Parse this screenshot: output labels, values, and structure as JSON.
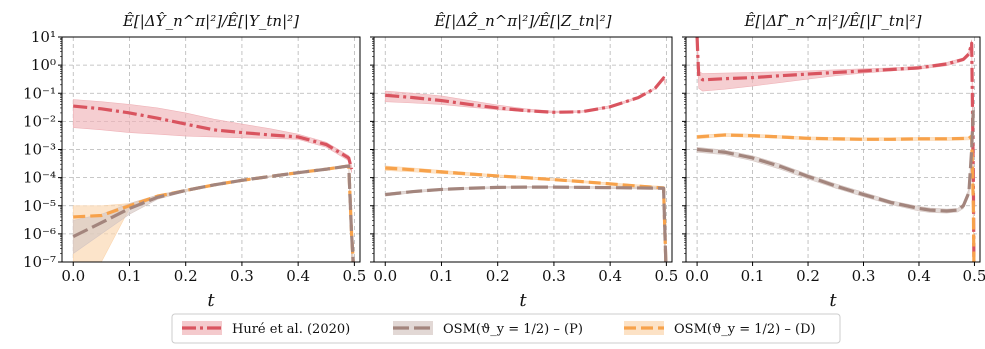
{
  "figure": {
    "legend": {
      "placement": "bottom-center",
      "entries": [
        {
          "key": "hure",
          "label": "Huré et al. (2020)"
        },
        {
          "key": "osm_p",
          "label": "OSM(ϑ_y = 1/2) – (P)"
        },
        {
          "key": "osm_d",
          "label": "OSM(ϑ_y = 1/2) – (D)"
        }
      ]
    },
    "colors": {
      "hure": "#d9545f",
      "hure_band": "#efb3b8",
      "osm_p": "#a3857d",
      "osm_p_band": "#d6c7c3",
      "osm_d": "#f7a24b",
      "osm_d_band": "#fbd6ae",
      "grid": "#b5b5b5"
    }
  },
  "chart_data": [
    {
      "type": "line",
      "title": "Ê[|ΔŶ_n^π|²]/Ê[|Y_tn|²]",
      "xlabel": "t",
      "ylabel": "",
      "yscale": "log",
      "xlim": [
        -0.02,
        0.51
      ],
      "ylim": [
        1e-07,
        10
      ],
      "xticks": [
        "0.0",
        "0.1",
        "0.2",
        "0.3",
        "0.4",
        "0.5"
      ],
      "yticks": [
        "10⁻⁷",
        "10⁻⁶",
        "10⁻⁵",
        "10⁻⁴",
        "10⁻³",
        "10⁻²",
        "10⁻¹",
        "10⁰",
        "10¹"
      ],
      "grid": true,
      "series": [
        {
          "key": "osm_d",
          "x": [
            0.0,
            0.05,
            0.1,
            0.15,
            0.2,
            0.25,
            0.3,
            0.35,
            0.4,
            0.45,
            0.49,
            0.495,
            0.498
          ],
          "y": [
            4e-06,
            4.5e-06,
            1e-05,
            2.2e-05,
            3.5e-05,
            5.5e-05,
            8e-05,
            0.00011,
            0.00015,
            0.0002,
            0.00026,
            1e-06,
            1e-07
          ],
          "lo": [
            1e-07,
            1e-07,
            8e-06,
            2e-05,
            3.2e-05,
            5e-05,
            7.5e-05,
            0.000105,
            0.00014,
            0.00019,
            0.00024,
            1e-07,
            1e-07
          ],
          "hi": [
            1e-05,
            1e-05,
            1.2e-05,
            2.4e-05,
            3.8e-05,
            6e-05,
            8.5e-05,
            0.000115,
            0.00016,
            0.00021,
            0.00028,
            2e-06,
            1e-07
          ]
        },
        {
          "key": "osm_p",
          "x": [
            0.0,
            0.05,
            0.1,
            0.15,
            0.2,
            0.25,
            0.3,
            0.35,
            0.4,
            0.45,
            0.49,
            0.495,
            0.498
          ],
          "y": [
            8e-07,
            2.5e-06,
            8e-06,
            2e-05,
            3.5e-05,
            5.5e-05,
            8e-05,
            0.00011,
            0.00015,
            0.0002,
            0.00026,
            1e-06,
            1e-07
          ],
          "lo": [
            2e-07,
            1e-06,
            5e-06,
            1.7e-05,
            3.2e-05,
            5e-05,
            7.5e-05,
            0.000105,
            0.00014,
            0.00019,
            0.00024,
            1e-07,
            1e-07
          ],
          "hi": [
            3e-06,
            5e-06,
            1.2e-05,
            2.4e-05,
            3.8e-05,
            6e-05,
            8.5e-05,
            0.000115,
            0.00016,
            0.00021,
            0.00028,
            2e-06,
            1e-07
          ]
        },
        {
          "key": "hure",
          "x": [
            0.0,
            0.05,
            0.1,
            0.15,
            0.2,
            0.25,
            0.3,
            0.35,
            0.4,
            0.45,
            0.49,
            0.495
          ],
          "y": [
            0.035,
            0.028,
            0.02,
            0.013,
            0.008,
            0.005,
            0.004,
            0.0033,
            0.0028,
            0.0015,
            0.0005,
            0.0002
          ],
          "lo": [
            0.006,
            0.005,
            0.004,
            0.0035,
            0.003,
            0.0028,
            0.0026,
            0.0025,
            0.0023,
            0.0012,
            0.0004,
            0.00015
          ],
          "hi": [
            0.06,
            0.05,
            0.04,
            0.03,
            0.02,
            0.012,
            0.008,
            0.0055,
            0.0035,
            0.0018,
            0.0006,
            0.00025
          ]
        }
      ]
    },
    {
      "type": "line",
      "title": "Ê[|ΔẐ_n^π|²]/Ê[|Z_tn|²]",
      "xlabel": "t",
      "ylabel": "",
      "yscale": "log",
      "xlim": [
        -0.02,
        0.51
      ],
      "ylim": [
        1e-07,
        10
      ],
      "xticks": [
        "0.0",
        "0.1",
        "0.2",
        "0.3",
        "0.4",
        "0.5"
      ],
      "grid": true,
      "series": [
        {
          "key": "hure",
          "x": [
            0.0,
            0.05,
            0.1,
            0.15,
            0.2,
            0.25,
            0.3,
            0.35,
            0.4,
            0.45,
            0.48,
            0.495,
            0.498
          ],
          "y": [
            0.085,
            0.07,
            0.055,
            0.04,
            0.03,
            0.024,
            0.021,
            0.022,
            0.033,
            0.07,
            0.15,
            0.35,
            0.25
          ],
          "lo": [
            0.05,
            0.045,
            0.04,
            0.032,
            0.026,
            0.022,
            0.02,
            0.021,
            0.03,
            0.065,
            0.14,
            0.3,
            0.2
          ],
          "hi": [
            0.12,
            0.1,
            0.08,
            0.055,
            0.038,
            0.028,
            0.023,
            0.024,
            0.036,
            0.075,
            0.16,
            0.4,
            0.3
          ]
        },
        {
          "key": "osm_d",
          "x": [
            0.0,
            0.05,
            0.1,
            0.15,
            0.2,
            0.25,
            0.3,
            0.35,
            0.4,
            0.45,
            0.495,
            0.497,
            0.499
          ],
          "y": [
            0.00022,
            0.00019,
            0.00016,
            0.000135,
            0.000115,
            0.0001,
            8.5e-05,
            7.2e-05,
            6e-05,
            5e-05,
            4.3e-05,
            2e-06,
            1e-07
          ],
          "lo": [
            0.00018,
            0.00016,
            0.00014,
            0.00012,
            0.000105,
            9e-05,
            7.8e-05,
            6.6e-05,
            5.5e-05,
            4.5e-05,
            3.8e-05,
            1e-07,
            1e-07
          ],
          "hi": [
            0.00026,
            0.00022,
            0.00018,
            0.00015,
            0.000125,
            0.00011,
            9.2e-05,
            7.8e-05,
            6.5e-05,
            5.5e-05,
            4.8e-05,
            3e-06,
            1e-07
          ]
        },
        {
          "key": "osm_p",
          "x": [
            0.0,
            0.05,
            0.1,
            0.15,
            0.2,
            0.25,
            0.3,
            0.35,
            0.4,
            0.45,
            0.495,
            0.497,
            0.499
          ],
          "y": [
            2.5e-05,
            3.2e-05,
            3.8e-05,
            4.2e-05,
            4.5e-05,
            4.6e-05,
            4.6e-05,
            4.5e-05,
            4.4e-05,
            4.3e-05,
            4.2e-05,
            2e-06,
            1e-07
          ],
          "lo": [
            2.2e-05,
            2.9e-05,
            3.5e-05,
            3.9e-05,
            4.2e-05,
            4.3e-05,
            4.3e-05,
            4.2e-05,
            4.1e-05,
            4e-05,
            3.8e-05,
            1e-07,
            1e-07
          ],
          "hi": [
            2.8e-05,
            3.5e-05,
            4.1e-05,
            4.5e-05,
            4.8e-05,
            4.9e-05,
            4.9e-05,
            4.8e-05,
            4.7e-05,
            4.6e-05,
            4.6e-05,
            3e-06,
            1e-07
          ]
        }
      ]
    },
    {
      "type": "line",
      "title": "Ê[|ΔΓ̂_n^π|²]/Ê[|Γ_tn|²]",
      "xlabel": "t",
      "ylabel": "",
      "yscale": "log",
      "xlim": [
        -0.02,
        0.51
      ],
      "ylim": [
        1e-07,
        10
      ],
      "xticks": [
        "0.0",
        "0.1",
        "0.2",
        "0.3",
        "0.4",
        "0.5"
      ],
      "grid": true,
      "series": [
        {
          "key": "hure",
          "x": [
            0.0,
            0.001,
            0.003,
            0.01,
            0.05,
            0.1,
            0.15,
            0.2,
            0.25,
            0.3,
            0.35,
            0.4,
            0.45,
            0.48,
            0.49,
            0.495,
            0.498,
            0.499
          ],
          "y": [
            10,
            3,
            0.4,
            0.3,
            0.33,
            0.36,
            0.42,
            0.48,
            0.55,
            0.62,
            0.7,
            0.8,
            1.1,
            1.6,
            2.5,
            6,
            0.0001,
            1e-07
          ],
          "lo": [
            5,
            1,
            0.15,
            0.12,
            0.14,
            0.18,
            0.24,
            0.32,
            0.42,
            0.52,
            0.62,
            0.72,
            0.95,
            1.4,
            2.1,
            4,
            1e-05,
            1e-07
          ],
          "hi": [
            10,
            6,
            0.6,
            0.5,
            0.52,
            0.55,
            0.58,
            0.62,
            0.68,
            0.74,
            0.8,
            0.9,
            1.25,
            1.8,
            3,
            8,
            0.001,
            1e-07
          ]
        },
        {
          "key": "osm_d",
          "x": [
            0.0,
            0.05,
            0.1,
            0.15,
            0.2,
            0.25,
            0.3,
            0.35,
            0.4,
            0.45,
            0.49,
            0.495,
            0.498,
            0.499
          ],
          "y": [
            0.0028,
            0.0033,
            0.0031,
            0.0028,
            0.0025,
            0.0024,
            0.0023,
            0.0023,
            0.0024,
            0.0024,
            0.0025,
            0.003,
            1e-05,
            1e-07
          ],
          "lo": [
            0.0024,
            0.0029,
            0.0027,
            0.0025,
            0.0022,
            0.0021,
            0.0021,
            0.0021,
            0.0021,
            0.0021,
            0.0022,
            0.0025,
            1e-06,
            1e-07
          ],
          "hi": [
            0.0032,
            0.0037,
            0.0035,
            0.0031,
            0.0028,
            0.0027,
            0.0026,
            0.0026,
            0.0027,
            0.0027,
            0.0028,
            0.0035,
            0.0001,
            1e-07
          ]
        },
        {
          "key": "osm_p",
          "x": [
            0.0,
            0.05,
            0.1,
            0.15,
            0.2,
            0.25,
            0.3,
            0.35,
            0.4,
            0.42,
            0.45,
            0.47,
            0.48,
            0.49,
            0.495,
            0.498
          ],
          "y": [
            0.001,
            0.0008,
            0.0005,
            0.00025,
            0.00011,
            5e-05,
            2.5e-05,
            1.3e-05,
            8e-06,
            7e-06,
            6.5e-06,
            7e-06,
            1e-05,
            3e-05,
            0.001,
            0.03
          ],
          "lo": [
            0.0008,
            0.00065,
            0.0004,
            0.0002,
            9e-05,
            4.2e-05,
            2.1e-05,
            1.1e-05,
            6.5e-06,
            5.8e-06,
            5.5e-06,
            6e-06,
            8e-06,
            2.2e-05,
            0.0007,
            0.02
          ],
          "hi": [
            0.0012,
            0.00095,
            0.0006,
            0.0003,
            0.00013,
            6e-05,
            3e-05,
            1.5e-05,
            9.5e-06,
            8.3e-06,
            7.6e-06,
            8e-06,
            1.2e-05,
            4e-05,
            0.0014,
            0.04
          ]
        }
      ]
    }
  ]
}
